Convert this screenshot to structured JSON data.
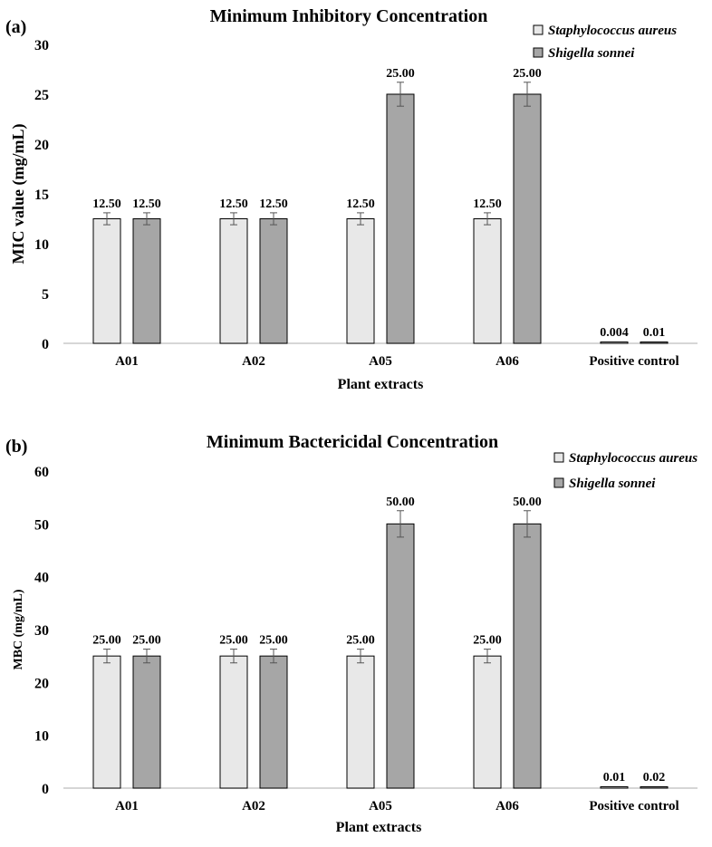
{
  "chart_data": [
    {
      "panel_label": "(a)",
      "type": "bar",
      "title": "Minimum Inhibitory Concentration",
      "xlabel": "Plant extracts",
      "ylabel": "MIC value (mg/mL)",
      "ylim": [
        0,
        30
      ],
      "yticks": [
        0,
        5,
        10,
        15,
        20,
        25,
        30
      ],
      "categories": [
        "A01",
        "A02",
        "A05",
        "A06",
        "Positive control"
      ],
      "legend_position": "top-right",
      "series": [
        {
          "name": "Staphylococcus aureus",
          "color": "#e8e8e8",
          "values": [
            12.5,
            12.5,
            12.5,
            12.5,
            0.004
          ],
          "errors": [
            0.6,
            0.6,
            0.6,
            0.6,
            0
          ],
          "labels": [
            "12.50",
            "12.50",
            "12.50",
            "12.50",
            "0.004"
          ]
        },
        {
          "name": "Shigella sonnei",
          "color": "#a6a6a6",
          "values": [
            12.5,
            12.5,
            25,
            25,
            0.01
          ],
          "errors": [
            0.6,
            0.6,
            1.2,
            1.2,
            0
          ],
          "labels": [
            "12.50",
            "12.50",
            "25.00",
            "25.00",
            "0.01"
          ]
        }
      ]
    },
    {
      "panel_label": "(b)",
      "type": "bar",
      "title": "Minimum Bactericidal Concentration",
      "xlabel": "Plant extracts",
      "ylabel": "MBC (mg/mL)",
      "ylim": [
        0,
        60
      ],
      "yticks": [
        0,
        10,
        20,
        30,
        40,
        50,
        60
      ],
      "categories": [
        "A01",
        "A02",
        "A05",
        "A06",
        "Positive control"
      ],
      "legend_position": "top-right",
      "series": [
        {
          "name": "Staphylococcus aureus",
          "color": "#e8e8e8",
          "values": [
            25,
            25,
            25,
            25,
            0.01
          ],
          "errors": [
            1.3,
            1.3,
            1.3,
            1.3,
            0
          ],
          "labels": [
            "25.00",
            "25.00",
            "25.00",
            "25.00",
            "0.01"
          ]
        },
        {
          "name": "Shigella sonnei",
          "color": "#a6a6a6",
          "values": [
            25,
            25,
            50,
            50,
            0.02
          ],
          "errors": [
            1.3,
            1.3,
            2.5,
            2.5,
            0
          ],
          "labels": [
            "25.00",
            "25.00",
            "50.00",
            "50.00",
            "0.02"
          ]
        }
      ]
    }
  ]
}
